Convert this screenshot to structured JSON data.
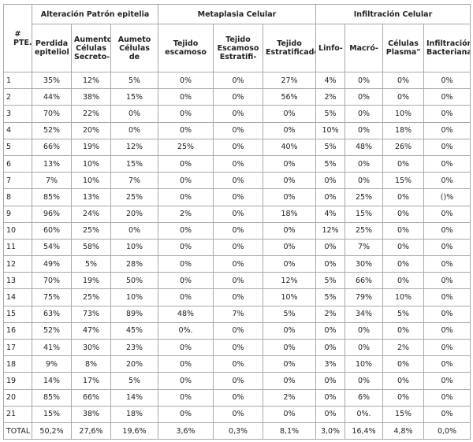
{
  "table": {
    "groups": [
      "# PTE.",
      "Alteración Patrón epitelia",
      "Metaplasia Celular",
      "Infiltración Celular"
    ],
    "columns": [
      "Perdida epiteliol",
      "Aumento Células Secreto-",
      "Aumeto Células de",
      "Tejido escamoso",
      "Tejido Escamoso Estratifi-",
      "Tejido Estratificado",
      "Linfo-",
      "Macró-",
      "Células Plasma\"",
      "Infiltración Bacteriana"
    ],
    "rows": [
      [
        "1",
        "35%",
        "12%",
        "5%",
        "0%",
        "0%",
        "27%",
        "4%",
        "0%",
        "0%",
        "0%"
      ],
      [
        "2",
        "44%",
        "38%",
        "15%",
        "0%",
        "0%",
        "56%",
        "2%",
        "0%",
        "0%",
        "0%"
      ],
      [
        "3",
        "70%",
        "22%",
        "0%",
        "0%",
        "0%",
        "0%",
        "5%",
        "0%",
        "10%",
        "0%"
      ],
      [
        "4",
        "52%",
        "20%",
        "0%",
        "0%",
        "0%",
        "0%",
        "10%",
        "0%",
        "18%",
        "0%"
      ],
      [
        "5",
        "66%",
        "19%",
        "12%",
        "25%",
        "0%",
        "40%",
        "5%",
        "48%",
        "26%",
        "0%"
      ],
      [
        "6",
        "13%",
        "10%",
        "15%",
        "0%",
        "0%",
        "0%",
        "5%",
        "0%",
        "0%",
        "0%"
      ],
      [
        "7",
        "7%",
        "10%",
        "7%",
        "0%",
        "0%",
        "0%",
        "0%",
        "0%",
        "15%",
        "0%"
      ],
      [
        "8",
        "85%",
        "13%",
        "25%",
        "0%",
        "0%",
        "0%",
        "0%",
        "25%",
        "0%",
        "()%"
      ],
      [
        "9",
        "96%",
        "24%",
        "20%",
        "2%",
        "0%",
        "18%",
        "4%",
        "15%",
        "0%",
        "0%"
      ],
      [
        "10",
        "60%",
        "25%",
        "0%",
        "0%",
        "0%",
        "0%",
        "12%",
        "25%",
        "0%",
        "0%"
      ],
      [
        "11",
        "54%",
        "58%",
        "10%",
        "0%",
        "0%",
        "0%",
        "0%",
        "7%",
        "0%",
        "0%"
      ],
      [
        "12",
        "49%",
        "5%",
        "28%",
        "0%",
        "0%",
        "0%",
        "0%",
        "30%",
        "0%",
        "0%"
      ],
      [
        "13",
        "70%",
        "19%",
        "50%",
        "0%",
        "0%",
        "12%",
        "5%",
        "66%",
        "0%",
        "0%"
      ],
      [
        "14",
        "75%",
        "25%",
        "10%",
        "0%",
        "0%",
        "10%",
        "5%",
        "79%",
        "10%",
        "0%"
      ],
      [
        "15",
        "63%",
        "73%",
        "89%",
        "48%",
        "7%",
        "5%",
        "2%",
        "34%",
        "5%",
        "0%"
      ],
      [
        "16",
        "52%",
        "47%",
        "45%",
        "0%.",
        "0%",
        "0%",
        "0%",
        "0%",
        "0%",
        "0%"
      ],
      [
        "17",
        "41%",
        "30%",
        "23%",
        "0%",
        "0%",
        "0%",
        "0%",
        "0%",
        "2%",
        "0%"
      ],
      [
        "18",
        "9%",
        "8%",
        "20%",
        "0%",
        "0%",
        "0%",
        "3%",
        "10%",
        "0%",
        "0%"
      ],
      [
        "19",
        "14%",
        "17%",
        "5%",
        "0%",
        "0%",
        "0%",
        "0%",
        "0%",
        "0%",
        "0%"
      ],
      [
        "20",
        "85%",
        "66%",
        "14%",
        "0%",
        "0%",
        "2%",
        "0%",
        "6%",
        "0%",
        "0%"
      ],
      [
        "21",
        "15%",
        "38%",
        "18%",
        "0%",
        "0%",
        "0%",
        "0%",
        "0%.",
        "15%",
        "0%"
      ],
      [
        "TOTAL",
        "50,2%",
        "27,6%",
        "19,6%",
        "3,6%",
        "0,3%",
        "8,1%",
        "3,0%",
        "16,4%",
        "4,8%",
        "0,0%"
      ]
    ]
  }
}
